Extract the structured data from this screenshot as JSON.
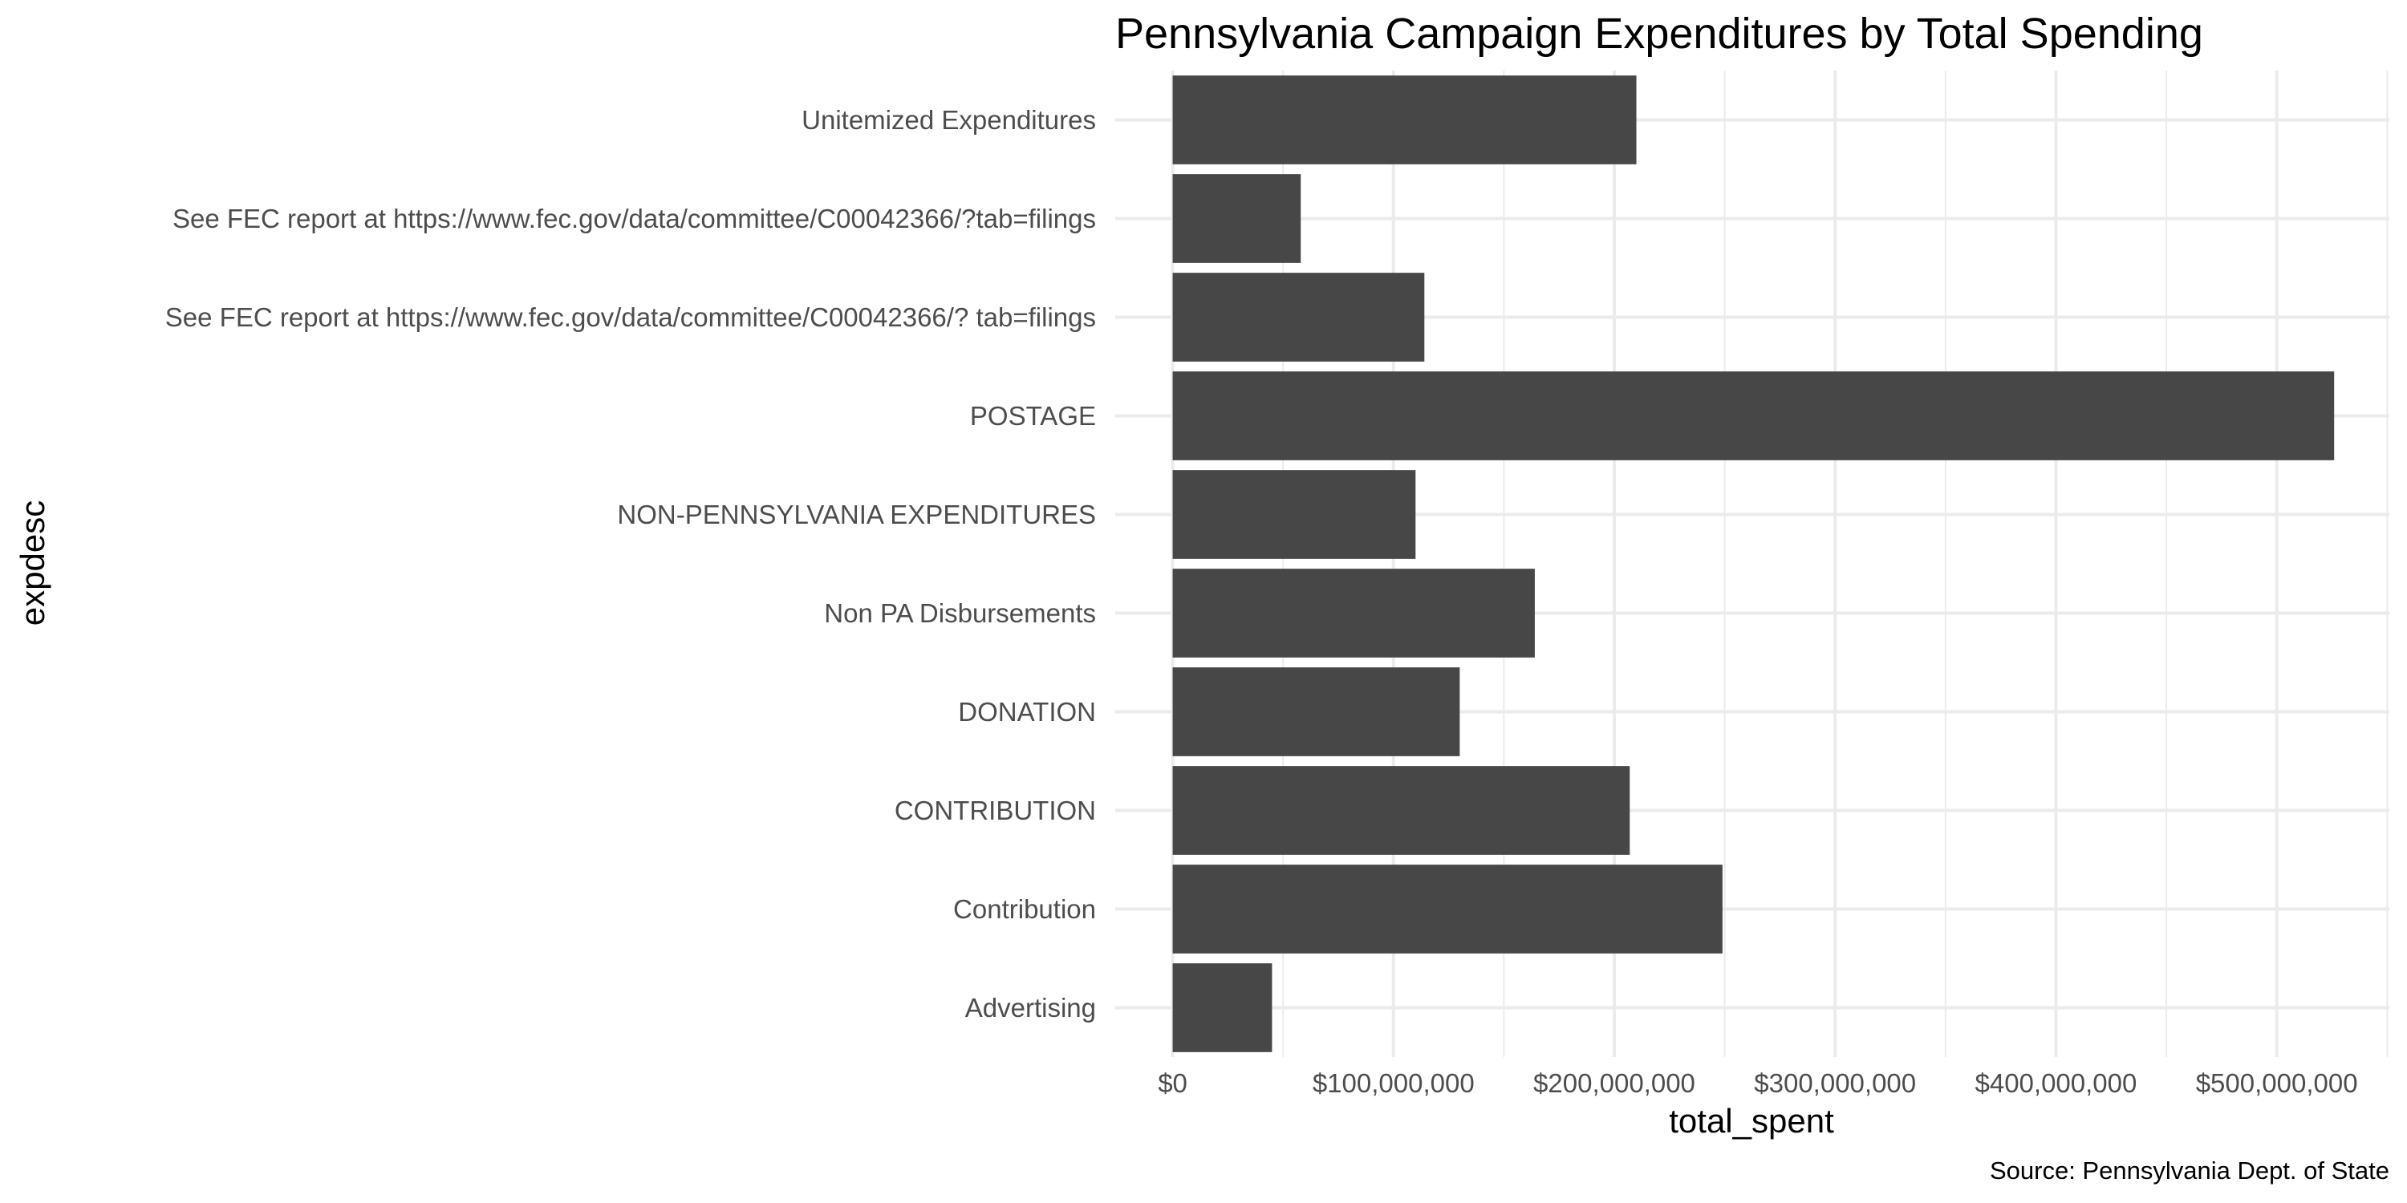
{
  "chart_data": {
    "type": "bar",
    "orientation": "horizontal",
    "title": "Pennsylvania Campaign Expenditures by Total Spending",
    "xlabel": "total_spent",
    "ylabel": "expdesc",
    "caption": "Source: Pennsylvania Dept. of State",
    "categories": [
      "Advertising",
      "Contribution",
      "CONTRIBUTION",
      "DONATION",
      "Non PA Disbursements",
      "NON-PENNSYLVANIA EXPENDITURES",
      "POSTAGE",
      "See FEC report at https://www.fec.gov/data/committee/C00042366/? tab=filings",
      "See FEC report at https://www.fec.gov/data/committee/C00042366/?tab=filings",
      "Unitemized Expenditures"
    ],
    "values": [
      45000000,
      249000000,
      207000000,
      130000000,
      164000000,
      110000000,
      526000000,
      114000000,
      58000000,
      210000000
    ],
    "xlim": [
      -26000000,
      551000000
    ],
    "x_ticks": [
      0,
      100000000,
      200000000,
      300000000,
      400000000,
      500000000
    ],
    "x_tick_labels": [
      "$0",
      "$100,000,000",
      "$200,000,000",
      "$300,000,000",
      "$400,000,000",
      "$500,000,000"
    ],
    "grid": true,
    "bar_color": "#474747"
  }
}
